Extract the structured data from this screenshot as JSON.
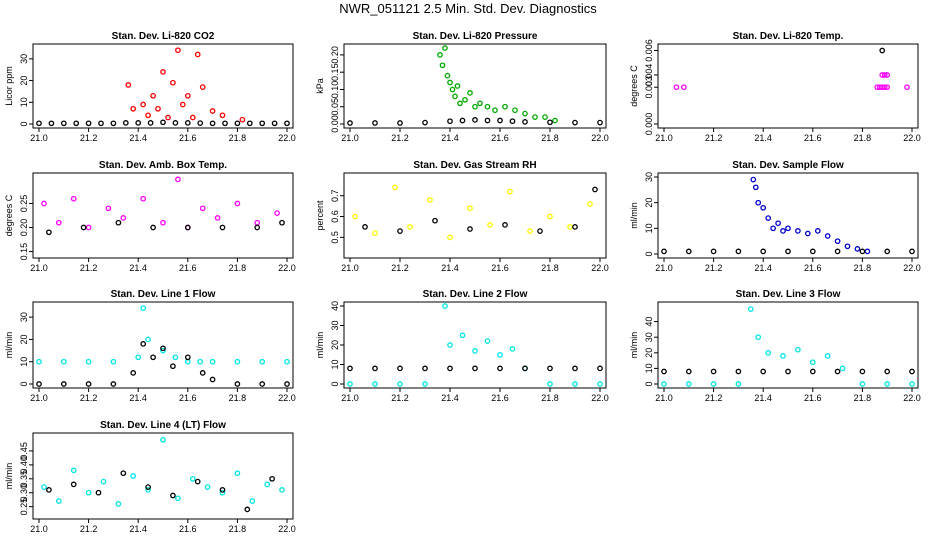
{
  "page": {
    "title": "NWR_051121  2.5 Min. Std. Dev. Diagnostics"
  },
  "chart_data": [
    {
      "id": "co2",
      "type": "scatter",
      "title": "Stan. Dev. Li-820 CO2",
      "ylabel": "Licor ppm",
      "xlim": [
        21.0,
        22.0
      ],
      "xticks": [
        "21.0",
        "21.2",
        "21.4",
        "21.6",
        "21.8",
        "22.0"
      ],
      "ylim": [
        0,
        35
      ],
      "yticks": [
        0,
        10,
        20,
        30
      ],
      "ytick_labels": [
        "0",
        "10",
        "20",
        "30"
      ],
      "series": [
        {
          "name": "bulk",
          "color": "#ff0000",
          "x": [
            21.36,
            21.38,
            21.42,
            21.44,
            21.46,
            21.48,
            21.5,
            21.52,
            21.54,
            21.56,
            21.58,
            21.6,
            21.62,
            21.64,
            21.66,
            21.7,
            21.74,
            21.82
          ],
          "y": [
            18,
            7,
            9,
            4,
            13,
            7,
            24,
            3,
            19,
            34,
            9,
            13,
            3,
            32,
            17,
            6,
            4,
            2
          ]
        },
        {
          "name": "black",
          "color": "#000000",
          "x": [
            21.0,
            21.05,
            21.1,
            21.15,
            21.2,
            21.25,
            21.3,
            21.35,
            21.4,
            21.45,
            21.5,
            21.55,
            21.6,
            21.65,
            21.7,
            21.75,
            21.8,
            21.85,
            21.9,
            21.95,
            22.0
          ],
          "y": [
            0.3,
            0.3,
            0.3,
            0.3,
            0.3,
            0.3,
            0.3,
            0.5,
            0.5,
            0.5,
            0.8,
            0.5,
            0.5,
            0.4,
            0.3,
            0.3,
            0.3,
            0.3,
            0.3,
            0.3,
            0.3
          ]
        }
      ]
    },
    {
      "id": "pressure",
      "type": "scatter",
      "title": "Stan. Dev. Li-820 Pressure",
      "ylabel": "kPa",
      "xlim": [
        21.0,
        22.0
      ],
      "xticks": [
        "21.0",
        "21.2",
        "21.4",
        "21.6",
        "21.8",
        "22.0"
      ],
      "ylim": [
        0,
        0.22
      ],
      "yticks": [
        0,
        0.05,
        0.1,
        0.15,
        0.2
      ],
      "ytick_labels": [
        "0.00",
        "0.05",
        "0.10",
        "0.15",
        "0.20"
      ],
      "series": [
        {
          "name": "bulk",
          "color": "#00aa00",
          "x": [
            21.36,
            21.37,
            21.38,
            21.39,
            21.4,
            21.41,
            21.42,
            21.43,
            21.44,
            21.46,
            21.48,
            21.5,
            21.52,
            21.55,
            21.58,
            21.62,
            21.66,
            21.7,
            21.74,
            21.78,
            21.82
          ],
          "y": [
            0.2,
            0.17,
            0.22,
            0.14,
            0.12,
            0.1,
            0.08,
            0.11,
            0.06,
            0.07,
            0.09,
            0.05,
            0.06,
            0.05,
            0.04,
            0.05,
            0.04,
            0.03,
            0.02,
            0.02,
            0.01
          ]
        },
        {
          "name": "black",
          "color": "#000000",
          "x": [
            21.0,
            21.1,
            21.2,
            21.3,
            21.4,
            21.45,
            21.5,
            21.55,
            21.6,
            21.65,
            21.7,
            21.8,
            21.9,
            22.0
          ],
          "y": [
            0.003,
            0.003,
            0.003,
            0.004,
            0.008,
            0.01,
            0.012,
            0.01,
            0.01,
            0.008,
            0.006,
            0.005,
            0.004,
            0.004
          ]
        }
      ]
    },
    {
      "id": "temp",
      "type": "scatter",
      "title": "Stan. Dev. Li-820 Temp.",
      "ylabel": "degrees C",
      "xlim": [
        21.0,
        22.0
      ],
      "xticks": [
        "21.0",
        "21.2",
        "21.4",
        "21.6",
        "21.8",
        "22.0"
      ],
      "ylim": [
        0,
        0.0062
      ],
      "yticks": [
        0,
        0.003,
        0.004,
        0.006
      ],
      "ytick_labels": [
        "0.000",
        "0.003",
        "0.004",
        "0.006"
      ],
      "series": [
        {
          "name": "bulk",
          "color": "#ff00ff",
          "x": [
            21.05,
            21.08,
            21.86,
            21.87,
            21.88,
            21.89,
            21.9,
            21.88,
            21.89,
            21.9,
            21.98
          ],
          "y": [
            0.003,
            0.003,
            0.003,
            0.003,
            0.003,
            0.003,
            0.003,
            0.004,
            0.004,
            0.004,
            0.003
          ]
        },
        {
          "name": "black",
          "color": "#000000",
          "x": [
            21.88
          ],
          "y": [
            0.006
          ]
        }
      ]
    },
    {
      "id": "boxtemp",
      "type": "scatter",
      "title": "Stan. Dev. Amb. Box Temp.",
      "ylabel": "degrees C",
      "xlim": [
        21.0,
        22.0
      ],
      "xticks": [
        "21.0",
        "21.2",
        "21.4",
        "21.6",
        "21.8",
        "22.0"
      ],
      "ylim": [
        0.145,
        0.305
      ],
      "yticks": [
        0.15,
        0.2,
        0.25
      ],
      "ytick_labels": [
        "0.15",
        "0.20",
        "0.25"
      ],
      "series": [
        {
          "name": "bulk",
          "color": "#ff00ff",
          "x": [
            21.02,
            21.08,
            21.14,
            21.2,
            21.28,
            21.34,
            21.42,
            21.5,
            21.56,
            21.6,
            21.66,
            21.72,
            21.8,
            21.88,
            21.96
          ],
          "y": [
            0.25,
            0.21,
            0.26,
            0.2,
            0.24,
            0.22,
            0.26,
            0.21,
            0.3,
            0.2,
            0.24,
            0.22,
            0.25,
            0.21,
            0.23
          ]
        },
        {
          "name": "black",
          "color": "#000000",
          "x": [
            21.04,
            21.18,
            21.32,
            21.46,
            21.6,
            21.74,
            21.88,
            21.98
          ],
          "y": [
            0.19,
            0.2,
            0.21,
            0.2,
            0.2,
            0.2,
            0.2,
            0.21
          ]
        }
      ]
    },
    {
      "id": "rh",
      "type": "scatter",
      "title": "Stan. Dev. Gas Stream RH",
      "ylabel": "percent",
      "xlim": [
        21.0,
        22.0
      ],
      "xticks": [
        "21.0",
        "21.2",
        "21.4",
        "21.6",
        "21.8",
        "22.0"
      ],
      "ylim": [
        0.42,
        0.79
      ],
      "yticks": [
        0.5,
        0.6,
        0.7
      ],
      "ytick_labels": [
        "0.5",
        "0.6",
        "0.7"
      ],
      "series": [
        {
          "name": "bulk",
          "color": "#ffff00",
          "x": [
            21.02,
            21.1,
            21.18,
            21.24,
            21.32,
            21.4,
            21.48,
            21.56,
            21.64,
            21.72,
            21.8,
            21.88,
            21.96
          ],
          "y": [
            0.6,
            0.52,
            0.74,
            0.55,
            0.68,
            0.5,
            0.64,
            0.56,
            0.72,
            0.53,
            0.6,
            0.55,
            0.66
          ]
        },
        {
          "name": "black",
          "color": "#000000",
          "x": [
            21.06,
            21.2,
            21.34,
            21.48,
            21.62,
            21.76,
            21.9,
            21.98
          ],
          "y": [
            0.55,
            0.53,
            0.58,
            0.54,
            0.56,
            0.53,
            0.55,
            0.73
          ]
        }
      ]
    },
    {
      "id": "sampleflow",
      "type": "scatter",
      "title": "Stan. Dev. Sample Flow",
      "ylabel": "ml/min",
      "xlim": [
        21.0,
        22.0
      ],
      "xticks": [
        "21.0",
        "21.2",
        "21.4",
        "21.6",
        "21.8",
        "22.0"
      ],
      "ylim": [
        0,
        30
      ],
      "yticks": [
        0,
        10,
        20,
        30
      ],
      "ytick_labels": [
        "0",
        "10",
        "20",
        "30"
      ],
      "series": [
        {
          "name": "bulk",
          "color": "#0000cc",
          "x": [
            21.36,
            21.37,
            21.38,
            21.4,
            21.42,
            21.44,
            21.46,
            21.48,
            21.5,
            21.54,
            21.58,
            21.62,
            21.66,
            21.7,
            21.74,
            21.78,
            21.82
          ],
          "y": [
            29,
            26,
            20,
            18,
            14,
            10,
            12,
            9,
            10,
            9,
            8,
            9,
            7,
            5,
            3,
            2,
            1
          ]
        },
        {
          "name": "black",
          "color": "#000000",
          "x": [
            21.0,
            21.1,
            21.2,
            21.3,
            21.4,
            21.5,
            21.6,
            21.7,
            21.8,
            21.9,
            22.0
          ],
          "y": [
            1,
            1,
            1,
            1,
            1,
            1,
            1,
            1,
            1,
            1,
            1
          ]
        }
      ]
    },
    {
      "id": "line1",
      "type": "scatter",
      "title": "Stan. Dev. Line 1 Flow",
      "ylabel": "ml/min",
      "xlim": [
        21.0,
        22.0
      ],
      "xticks": [
        "21.0",
        "21.2",
        "21.4",
        "21.6",
        "21.8",
        "22.0"
      ],
      "ylim": [
        0,
        35
      ],
      "yticks": [
        0,
        10,
        20,
        30
      ],
      "ytick_labels": [
        "0",
        "10",
        "20",
        "30"
      ],
      "series": [
        {
          "name": "bulk",
          "color": "#00e5e5",
          "x": [
            21.0,
            21.1,
            21.2,
            21.3,
            21.4,
            21.42,
            21.44,
            21.5,
            21.55,
            21.6,
            21.65,
            21.7,
            21.8,
            21.9,
            22.0
          ],
          "y": [
            10,
            10,
            10,
            10,
            12,
            34,
            20,
            15,
            12,
            10,
            10,
            10,
            10,
            10,
            10
          ]
        },
        {
          "name": "black",
          "color": "#000000",
          "x": [
            21.0,
            21.1,
            21.2,
            21.3,
            21.38,
            21.42,
            21.46,
            21.5,
            21.54,
            21.6,
            21.66,
            21.7,
            21.8,
            21.9,
            22.0
          ],
          "y": [
            0,
            0,
            0,
            0,
            5,
            18,
            12,
            16,
            8,
            12,
            5,
            2,
            0,
            0,
            0
          ]
        }
      ]
    },
    {
      "id": "line2",
      "type": "scatter",
      "title": "Stan. Dev. Line 2 Flow",
      "ylabel": "ml/min",
      "xlim": [
        21.0,
        22.0
      ],
      "xticks": [
        "21.0",
        "21.2",
        "21.4",
        "21.6",
        "21.8",
        "22.0"
      ],
      "ylim": [
        0,
        40
      ],
      "yticks": [
        0,
        10,
        20,
        30,
        40
      ],
      "ytick_labels": [
        "0",
        "10",
        "20",
        "30",
        "40"
      ],
      "series": [
        {
          "name": "bulk",
          "color": "#00e5e5",
          "x": [
            21.0,
            21.1,
            21.2,
            21.3,
            21.38,
            21.4,
            21.45,
            21.5,
            21.55,
            21.6,
            21.65,
            21.7,
            21.8,
            21.9,
            22.0
          ],
          "y": [
            0,
            0,
            0,
            0,
            40,
            20,
            25,
            17,
            22,
            15,
            18,
            8,
            0,
            0,
            0
          ]
        },
        {
          "name": "black",
          "color": "#000000",
          "x": [
            21.0,
            21.1,
            21.2,
            21.3,
            21.4,
            21.5,
            21.6,
            21.7,
            21.8,
            21.9,
            22.0
          ],
          "y": [
            8,
            8,
            8,
            8,
            8,
            8,
            8,
            8,
            8,
            8,
            8
          ]
        }
      ]
    },
    {
      "id": "line3",
      "type": "scatter",
      "title": "Stan. Dev. Line 3 Flow",
      "ylabel": "ml/min",
      "xlim": [
        21.0,
        22.0
      ],
      "xticks": [
        "21.0",
        "21.2",
        "21.4",
        "21.6",
        "21.8",
        "22.0"
      ],
      "ylim": [
        0,
        50
      ],
      "yticks": [
        0,
        10,
        20,
        30,
        40
      ],
      "ytick_labels": [
        "0",
        "10",
        "20",
        "30",
        "40"
      ],
      "series": [
        {
          "name": "bulk",
          "color": "#00e5e5",
          "x": [
            21.0,
            21.1,
            21.2,
            21.3,
            21.35,
            21.38,
            21.42,
            21.48,
            21.54,
            21.6,
            21.66,
            21.72,
            21.8,
            21.9,
            22.0
          ],
          "y": [
            0,
            0,
            0,
            0,
            48,
            30,
            20,
            18,
            22,
            14,
            18,
            10,
            0,
            0,
            0
          ]
        },
        {
          "name": "black",
          "color": "#000000",
          "x": [
            21.0,
            21.1,
            21.2,
            21.3,
            21.4,
            21.5,
            21.6,
            21.7,
            21.8,
            21.9,
            22.0
          ],
          "y": [
            8,
            8,
            8,
            8,
            8,
            8,
            8,
            8,
            8,
            8,
            8
          ]
        }
      ]
    },
    {
      "id": "line4",
      "type": "scatter",
      "title": "Stan. Dev. Line 4 (LT) Flow",
      "ylabel": "ml/min",
      "xlim": [
        21.0,
        22.0
      ],
      "xticks": [
        "21.0",
        "21.2",
        "21.4",
        "21.6",
        "21.8",
        "22.0"
      ],
      "ylim": [
        0.22,
        0.5
      ],
      "yticks": [
        0.25,
        0.3,
        0.35,
        0.4,
        0.45
      ],
      "ytick_labels": [
        "0.25",
        "0.30",
        "0.35",
        "0.40",
        "0.45"
      ],
      "series": [
        {
          "name": "bulk",
          "color": "#00e5e5",
          "x": [
            21.02,
            21.08,
            21.14,
            21.2,
            21.26,
            21.32,
            21.38,
            21.44,
            21.5,
            21.56,
            21.62,
            21.68,
            21.74,
            21.8,
            21.86,
            21.92,
            21.98
          ],
          "y": [
            0.32,
            0.27,
            0.38,
            0.3,
            0.34,
            0.26,
            0.36,
            0.31,
            0.49,
            0.28,
            0.35,
            0.32,
            0.3,
            0.37,
            0.27,
            0.33,
            0.31
          ]
        },
        {
          "name": "black",
          "color": "#000000",
          "x": [
            21.04,
            21.14,
            21.24,
            21.34,
            21.44,
            21.54,
            21.64,
            21.74,
            21.84,
            21.94
          ],
          "y": [
            0.31,
            0.33,
            0.3,
            0.37,
            0.32,
            0.29,
            0.34,
            0.31,
            0.24,
            0.35
          ]
        }
      ]
    }
  ]
}
